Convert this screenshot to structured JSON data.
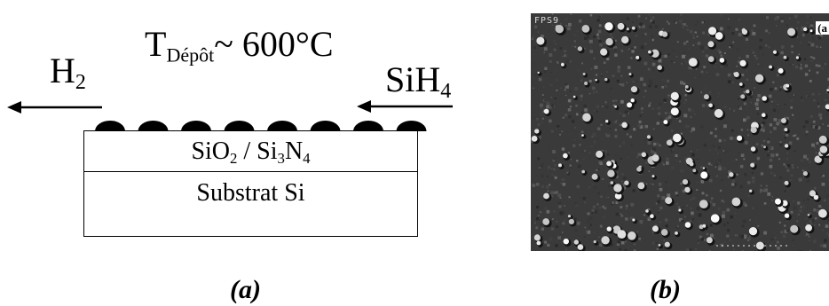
{
  "panel_a": {
    "h2": {
      "base": "H",
      "sub": "2"
    },
    "temperature": {
      "t": "T",
      "sub": "Dépôt",
      "value": "~ 600°C"
    },
    "sih4": {
      "base": "SiH",
      "sub": "4"
    },
    "layer_top": {
      "p1": "SiO",
      "s1": "2",
      "p2": " / Si",
      "s2": "3",
      "p3": "N",
      "s3": "4"
    },
    "layer_bottom": "Substrat Si",
    "caption": "(a)"
  },
  "panel_b": {
    "corner_label_left": "FPS9",
    "corner_label_right": "(a",
    "caption": "(b)"
  },
  "colors": {
    "ink": "#000000",
    "photo_bg": "#3a3a3a",
    "speck": "#e8e8e8"
  }
}
